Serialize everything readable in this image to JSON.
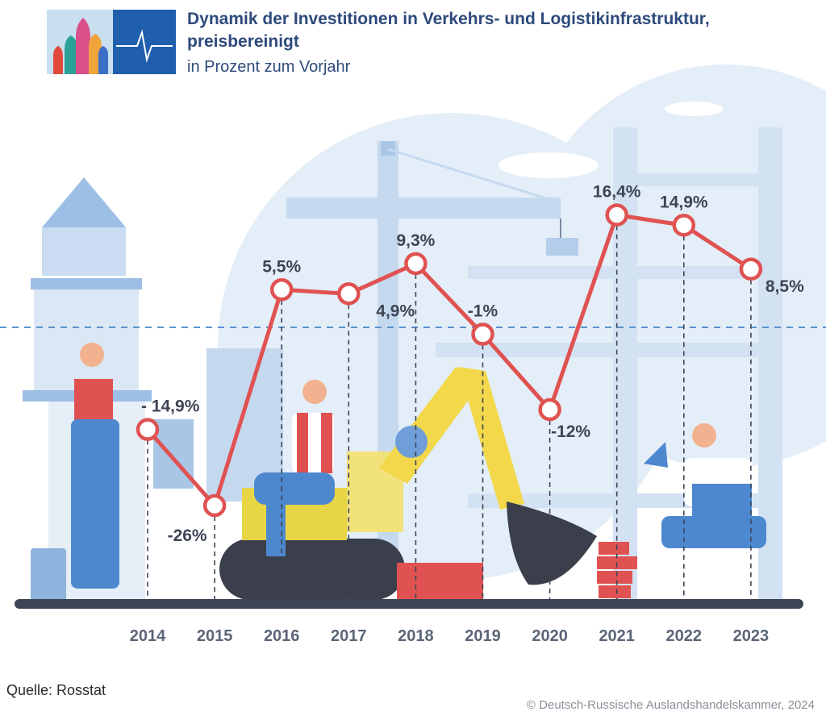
{
  "header": {
    "title": "Dynamik der Investitionen in Verkehrs- und Logistikinfrastruktur, preisbereinigt",
    "subtitle": "in Prozent zum Vorjahr"
  },
  "footer": {
    "source": "Quelle: Rosstat",
    "copyright": "© Deutsch-Russische Auslandshandelskammer, 2024"
  },
  "colors": {
    "line": "#e05252",
    "axis": "#3d4454",
    "label": "#3d4454",
    "year": "#5a6577",
    "zero_line": "#5b92cc",
    "background_art": "#dbe8f5"
  },
  "chart_data": {
    "type": "line",
    "title": "Dynamik der Investitionen in Verkehrs- und Logistikinfrastruktur, preisbereinigt",
    "subtitle": "in Prozent zum Vorjahr",
    "categories": [
      "2014",
      "2015",
      "2016",
      "2017",
      "2018",
      "2019",
      "2020",
      "2021",
      "2022",
      "2023"
    ],
    "values": [
      -14.9,
      -26,
      5.5,
      4.9,
      9.3,
      -1,
      -12,
      16.4,
      14.9,
      8.5
    ],
    "data_labels": [
      "- 14,9%",
      "-26%",
      "5,5%",
      "4,9%",
      "9,3%",
      "-1%",
      "-12%",
      "16,4%",
      "14,9%",
      "8,5%"
    ],
    "zero_line": "dashed",
    "grid": false,
    "legend": "none"
  }
}
